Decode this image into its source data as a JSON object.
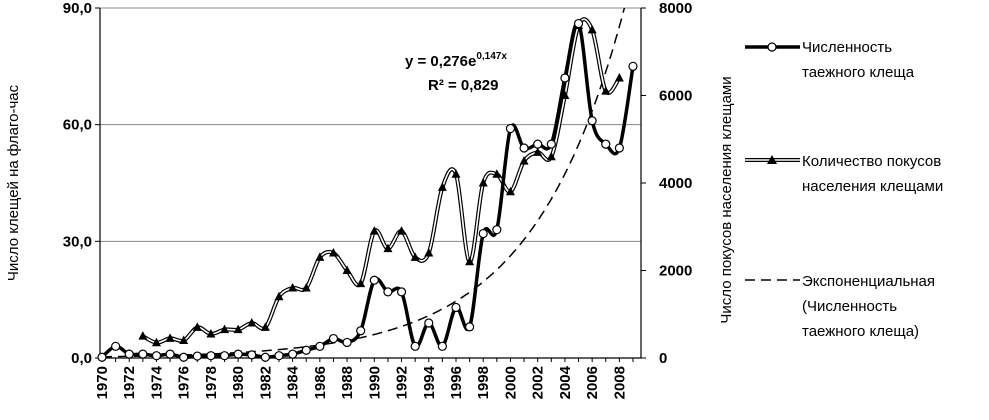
{
  "chart_data": {
    "type": "line",
    "title": "",
    "x": [
      1970,
      1971,
      1972,
      1973,
      1974,
      1975,
      1976,
      1977,
      1978,
      1979,
      1980,
      1981,
      1982,
      1983,
      1984,
      1985,
      1986,
      1987,
      1988,
      1989,
      1990,
      1991,
      1992,
      1993,
      1994,
      1995,
      1996,
      1997,
      1998,
      1999,
      2000,
      2001,
      2002,
      2003,
      2004,
      2005,
      2006,
      2007,
      2008,
      2009
    ],
    "x_tick_labels": [
      "1970",
      "1972",
      "1974",
      "1976",
      "1978",
      "1980",
      "1982",
      "1984",
      "1986",
      "1988",
      "1990",
      "1992",
      "1994",
      "1996",
      "1998",
      "2000",
      "2002",
      "2004",
      "2006",
      "2008"
    ],
    "ylabel_left": "Число клещей на флаго-час",
    "ylabel_right": "Число покусов населения клещами",
    "ylim_left": [
      0,
      90
    ],
    "ylim_right": [
      0,
      8000
    ],
    "yticks_left": [
      "0,0",
      "30,0",
      "60,0",
      "90,0"
    ],
    "yticks_right": [
      "0",
      "2000",
      "4000",
      "6000",
      "8000"
    ],
    "grid": "horizontal",
    "legend_placement": "right",
    "series": [
      {
        "name": "Численность таежного клеща",
        "axis": "left",
        "marker": "circle",
        "style": "thick-solid",
        "values": [
          0.2,
          3.0,
          1.0,
          1.0,
          0.6,
          1.0,
          0.2,
          0.5,
          0.6,
          0.6,
          1.0,
          0.8,
          0.2,
          0.6,
          1.0,
          2.0,
          3.0,
          5.0,
          4.0,
          7.0,
          20.0,
          17.0,
          17.0,
          3.0,
          9.0,
          3.0,
          13.0,
          8.0,
          32.0,
          33.0,
          59.0,
          54.0,
          55.0,
          55.0,
          72.0,
          86.0,
          61.0,
          55.0,
          54.0,
          75.0
        ]
      },
      {
        "name": "Количество покусов населения клещами",
        "axis": "right",
        "marker": "triangle",
        "style": "double-line",
        "values": [
          null,
          null,
          null,
          500,
          350,
          450,
          400,
          700,
          550,
          650,
          650,
          800,
          700,
          1400,
          1600,
          1600,
          2300,
          2400,
          2000,
          1700,
          2900,
          2500,
          2900,
          2300,
          2400,
          3900,
          4200,
          2200,
          4000,
          4200,
          3800,
          4500,
          4700,
          4600,
          6000,
          7600,
          7500,
          6100,
          6400,
          null
        ]
      },
      {
        "name": "Экспоненциальная (Численность таежного клеща)",
        "axis": "left",
        "style": "dashed",
        "fit": {
          "a": 0.276,
          "b": 0.147
        }
      }
    ],
    "annotations": {
      "equation_prefix": "y = 0,276e",
      "equation_exponent": "0,147x",
      "r2": "R² = 0,829"
    }
  },
  "legend": [
    {
      "line1": "Численность",
      "line2": "таежного клеща"
    },
    {
      "line1": "Количество покусов",
      "line2": "населения клещами"
    },
    {
      "line1": "Экспоненциальная",
      "line2": "(Численность",
      "line3": "таежного клеща)"
    }
  ]
}
